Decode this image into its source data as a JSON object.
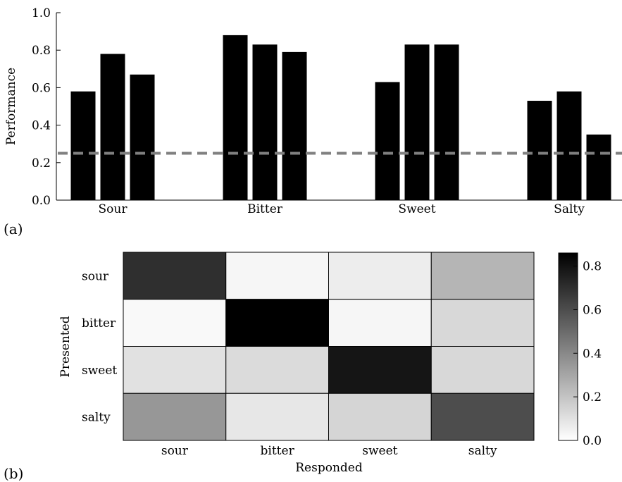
{
  "chart_data": [
    {
      "type": "bar",
      "panel_label": "(a)",
      "title": "",
      "xlabel": "",
      "ylabel": "Performance",
      "ylim": [
        0.0,
        1.0
      ],
      "yticks": [
        "0.0",
        "0.2",
        "0.4",
        "0.6",
        "0.8",
        "1.0"
      ],
      "categories": [
        "Sour",
        "Bitter",
        "Sweet",
        "Salty"
      ],
      "series": [
        {
          "values": [
            0.58,
            0.88,
            0.63,
            0.53
          ]
        },
        {
          "values": [
            0.78,
            0.83,
            0.83,
            0.58
          ]
        },
        {
          "values": [
            0.67,
            0.79,
            0.83,
            0.35
          ]
        }
      ],
      "bar_color": "#000000",
      "reference_line": {
        "y": 0.25,
        "style": "dashed",
        "color": "#808080"
      },
      "grid": false
    },
    {
      "type": "heatmap",
      "panel_label": "(b)",
      "title": "",
      "xlabel": "Responded",
      "ylabel": "Presented",
      "x_categories": [
        "sour",
        "bitter",
        "sweet",
        "salty"
      ],
      "y_categories": [
        "sour",
        "bitter",
        "sweet",
        "salty"
      ],
      "values": [
        [
          0.7,
          0.03,
          0.06,
          0.25
        ],
        [
          0.02,
          0.86,
          0.03,
          0.13
        ],
        [
          0.1,
          0.12,
          0.79,
          0.13
        ],
        [
          0.35,
          0.08,
          0.14,
          0.6
        ]
      ],
      "colormap": "white-to-black",
      "colorbar": {
        "range": [
          0.0,
          0.86
        ],
        "ticks": [
          "0.0",
          "0.2",
          "0.4",
          "0.6",
          "0.8"
        ],
        "position": "right"
      }
    }
  ]
}
